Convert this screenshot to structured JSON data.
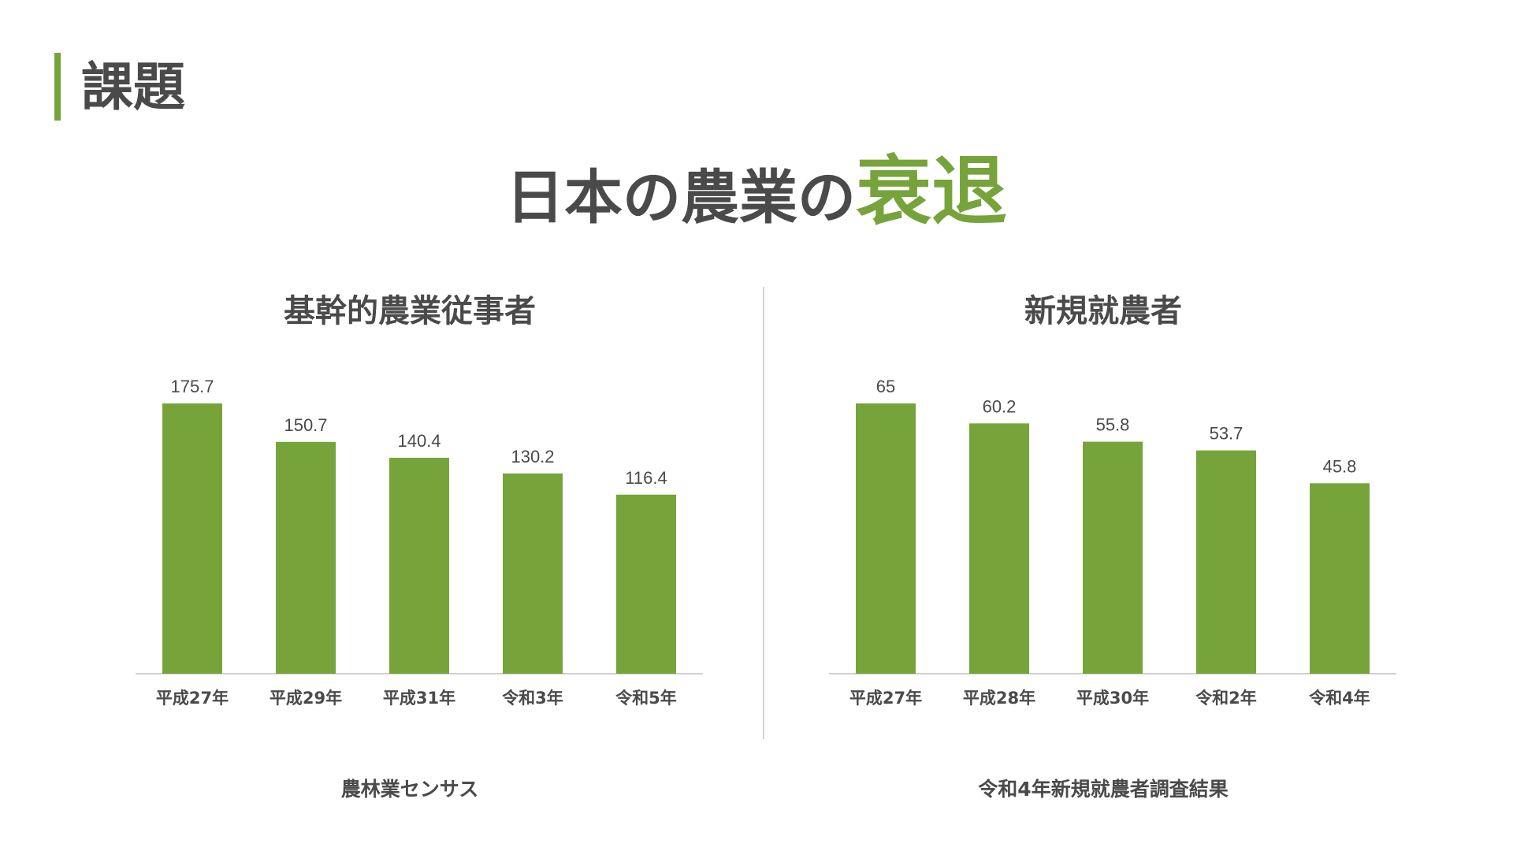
{
  "section": {
    "title": "課題"
  },
  "headline": {
    "main": "日本の農業の",
    "accent": "衰退"
  },
  "colors": {
    "accent": "#76a43b",
    "text": "#4a4a4a",
    "axis": "#d0d0d0"
  },
  "chart_data": [
    {
      "type": "bar",
      "title": "基幹的農業従事者",
      "categories": [
        "平成27年",
        "平成29年",
        "平成31年",
        "令和3年",
        "令和5年"
      ],
      "values": [
        175.7,
        150.7,
        140.4,
        130.2,
        116.4
      ],
      "data_labels": [
        "175.7",
        "150.7",
        "140.4",
        "130.2",
        "116.4"
      ],
      "ylim": [
        0,
        175.7
      ],
      "grid": false,
      "legend": "none",
      "source": "農林業センサス"
    },
    {
      "type": "bar",
      "title": "新規就農者",
      "categories": [
        "平成27年",
        "平成28年",
        "平成30年",
        "令和2年",
        "令和4年"
      ],
      "values": [
        65,
        60.2,
        55.8,
        53.7,
        45.8
      ],
      "data_labels": [
        "65",
        "60.2",
        "55.8",
        "53.7",
        "45.8"
      ],
      "ylim": [
        0,
        65
      ],
      "grid": false,
      "legend": "none",
      "source": "令和4年新規就農者調査結果"
    }
  ]
}
